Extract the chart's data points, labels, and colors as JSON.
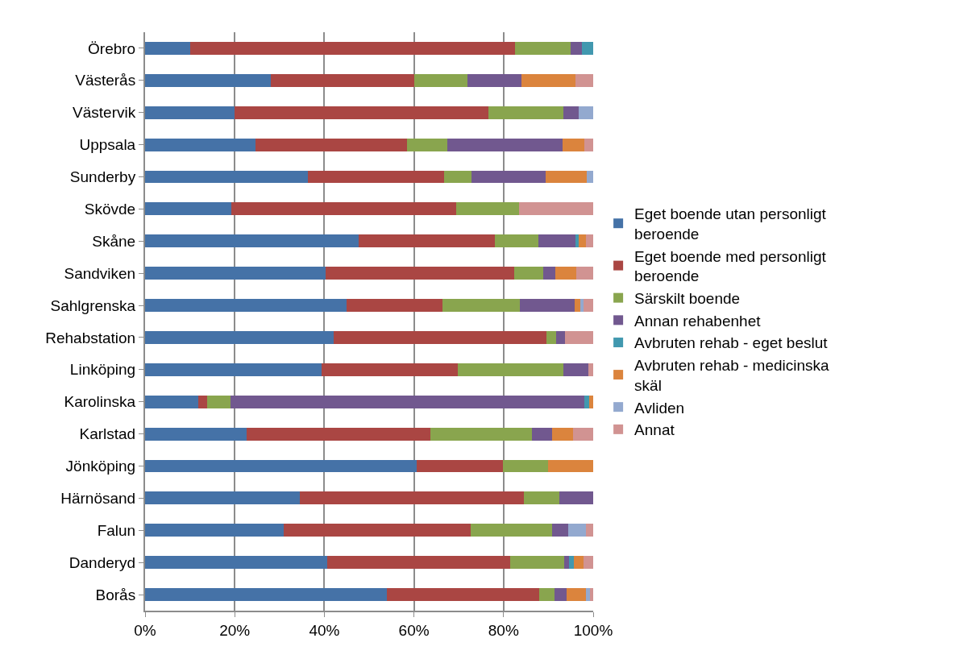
{
  "chart_data": {
    "type": "bar",
    "orientation": "horizontal",
    "stacked": true,
    "categories": [
      "Örebro",
      "Västerås",
      "Västervik",
      "Uppsala",
      "Sunderby",
      "Skövde",
      "Skåne",
      "Sandviken",
      "Sahlgrenska",
      "Rehabstation",
      "Linköping",
      "Karolinska",
      "Karlstad",
      "Jönköping",
      "Härnösand",
      "Falun",
      "Danderyd",
      "Borås"
    ],
    "series": [
      {
        "name": "Eget boende utan personligt beroende",
        "color": "#4572a7",
        "values": [
          10,
          28,
          20,
          24.7,
          36.4,
          19.3,
          47.7,
          40.2,
          45,
          42.1,
          39.3,
          11.9,
          22.6,
          60.7,
          34.6,
          30.9,
          40.7,
          53.9
        ]
      },
      {
        "name": "Eget boende med personligt beroende",
        "color": "#aa4643",
        "values": [
          72.5,
          32,
          56.7,
          33.8,
          30.3,
          50.1,
          30.4,
          42.1,
          21.4,
          47.5,
          30.4,
          2,
          41,
          19.1,
          50,
          41.8,
          40.8,
          34
        ]
      },
      {
        "name": "Särskilt boende",
        "color": "#89a54e",
        "values": [
          12.5,
          12,
          16.7,
          8.9,
          6.1,
          14,
          9.7,
          6.5,
          17.2,
          2.1,
          23.6,
          5.1,
          22.8,
          10.1,
          7.9,
          18.2,
          12.1,
          3.5
        ]
      },
      {
        "name": "Annan rehabenhet",
        "color": "#71588f",
        "values": [
          2.5,
          12,
          3.3,
          25.7,
          16.6,
          0,
          8.3,
          2.8,
          12.2,
          2,
          5.6,
          79.1,
          4.5,
          0,
          7.5,
          3.6,
          1,
          2.6
        ]
      },
      {
        "name": "Avbruten rehab - eget beslut",
        "color": "#4198af",
        "values": [
          2.5,
          0,
          0,
          0,
          0,
          0,
          0.6,
          0,
          0,
          0,
          0,
          1,
          0,
          0,
          0,
          0,
          1.1,
          0
        ]
      },
      {
        "name": "Avbruten rehab - medicinska skäl",
        "color": "#db843d",
        "values": [
          0,
          12,
          0,
          5,
          9.2,
          0,
          1.7,
          4.6,
          1.4,
          0,
          0,
          0.9,
          4.6,
          10.1,
          0,
          0,
          2.2,
          4.3
        ]
      },
      {
        "name": "Avliden",
        "color": "#93a9cf",
        "values": [
          0,
          0,
          3.3,
          0,
          1.4,
          0,
          0,
          0,
          0.7,
          0,
          0,
          0,
          0,
          0,
          0,
          3.8,
          0,
          0.9
        ]
      },
      {
        "name": "Annat",
        "color": "#d19392",
        "values": [
          0,
          4,
          0,
          1.9,
          0,
          16.6,
          1.6,
          3.8,
          2.1,
          6.3,
          1.1,
          0,
          4.5,
          0,
          0,
          1.7,
          2.1,
          0.8
        ]
      }
    ],
    "xlim": [
      0,
      100
    ],
    "xticks": [
      {
        "value": 0,
        "label": "0%"
      },
      {
        "value": 20,
        "label": "20%"
      },
      {
        "value": 40,
        "label": "40%"
      },
      {
        "value": 60,
        "label": "60%"
      },
      {
        "value": 80,
        "label": "80%"
      },
      {
        "value": 100,
        "label": "100%"
      }
    ],
    "grid": "x",
    "legend": "right"
  }
}
